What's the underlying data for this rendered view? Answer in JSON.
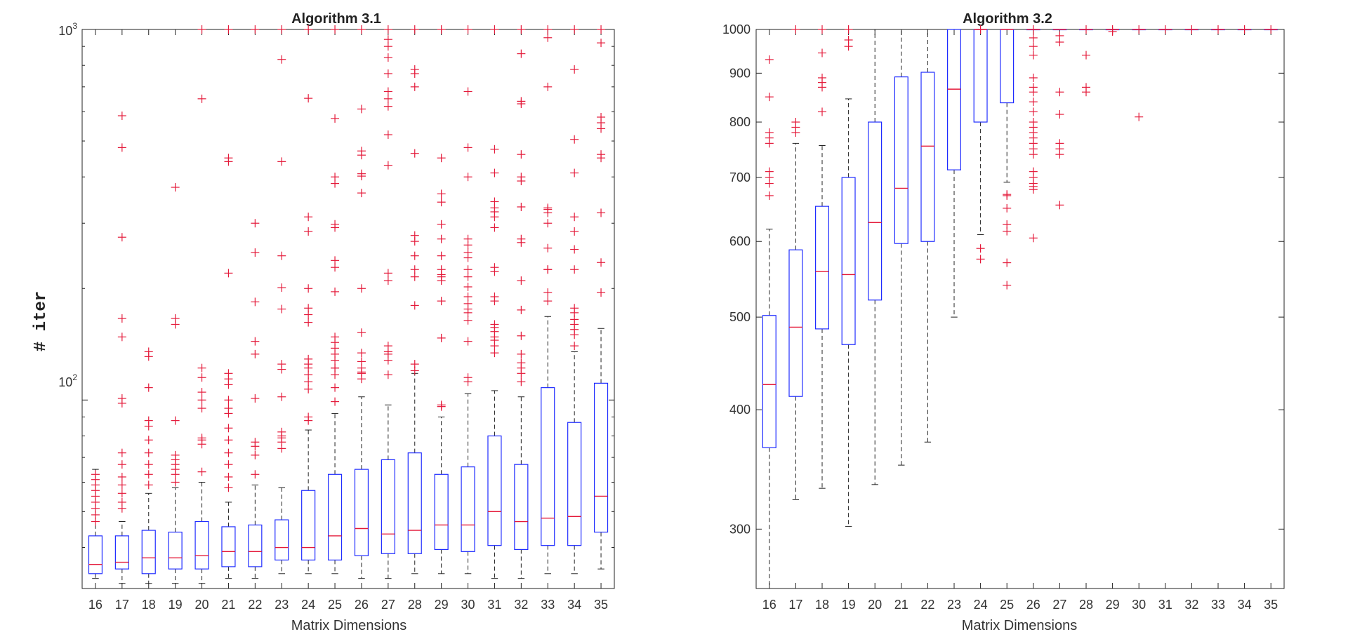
{
  "chart_data": [
    {
      "type": "boxplot",
      "title": "Algorithm 3.1",
      "xlabel": "Matrix Dimensions",
      "ylabel": "# iter",
      "yscale": "log",
      "ylim": [
        31,
        1000
      ],
      "ytick_labels": [
        {
          "base": "10",
          "exp": "2",
          "value": 100
        },
        {
          "base": "10",
          "exp": "3",
          "value": 1000
        }
      ],
      "categories": [
        "16",
        "17",
        "18",
        "19",
        "20",
        "21",
        "22",
        "23",
        "24",
        "25",
        "26",
        "27",
        "28",
        "29",
        "30",
        "31",
        "32",
        "33",
        "34",
        "35"
      ],
      "boxes": [
        {
          "lw": 33,
          "q1": 34,
          "med": 36,
          "q3": 43,
          "uw": 65
        },
        {
          "lw": 32,
          "q1": 35,
          "med": 36.5,
          "q3": 43,
          "uw": 47
        },
        {
          "lw": 32,
          "q1": 34,
          "med": 37.5,
          "q3": 44.5,
          "uw": 56
        },
        {
          "lw": 32,
          "q1": 35,
          "med": 37.5,
          "q3": 44,
          "uw": 58
        },
        {
          "lw": 32,
          "q1": 35,
          "med": 38,
          "q3": 47,
          "uw": 60
        },
        {
          "lw": 33,
          "q1": 35.5,
          "med": 39,
          "q3": 45.5,
          "uw": 53
        },
        {
          "lw": 33,
          "q1": 35.5,
          "med": 39,
          "q3": 46,
          "uw": 59
        },
        {
          "lw": 34,
          "q1": 37,
          "med": 40,
          "q3": 47.5,
          "uw": 58
        },
        {
          "lw": 34,
          "q1": 37,
          "med": 40,
          "q3": 57,
          "uw": 83
        },
        {
          "lw": 34,
          "q1": 37,
          "med": 43,
          "q3": 63,
          "uw": 92
        },
        {
          "lw": 33,
          "q1": 38,
          "med": 45,
          "q3": 65,
          "uw": 102
        },
        {
          "lw": 33,
          "q1": 38.5,
          "med": 43.5,
          "q3": 69,
          "uw": 97
        },
        {
          "lw": 34,
          "q1": 38.5,
          "med": 44.5,
          "q3": 72,
          "uw": 118
        },
        {
          "lw": 34,
          "q1": 39.5,
          "med": 46,
          "q3": 63,
          "uw": 90
        },
        {
          "lw": 34,
          "q1": 39,
          "med": 46,
          "q3": 66,
          "uw": 104
        },
        {
          "lw": 33,
          "q1": 40.5,
          "med": 50,
          "q3": 80,
          "uw": 106
        },
        {
          "lw": 33,
          "q1": 39.5,
          "med": 47,
          "q3": 67,
          "uw": 102
        },
        {
          "lw": 34,
          "q1": 40.5,
          "med": 48,
          "q3": 108,
          "uw": 168
        },
        {
          "lw": 34,
          "q1": 40.5,
          "med": 48.5,
          "q3": 87,
          "uw": 135
        },
        {
          "lw": 35,
          "q1": 44,
          "med": 55,
          "q3": 111,
          "uw": 156
        }
      ],
      "outliers": [
        [
          47,
          49,
          51,
          53,
          55,
          57,
          59,
          61,
          63
        ],
        [
          51,
          53,
          56,
          59,
          62,
          67,
          72,
          98,
          101,
          148,
          166,
          275,
          480,
          585
        ],
        [
          59,
          63,
          67,
          72,
          78,
          85,
          88,
          108,
          131,
          135
        ],
        [
          60,
          63,
          65,
          67,
          69,
          71,
          88,
          160,
          166,
          375
        ],
        [
          64,
          76,
          78,
          79,
          95,
          100,
          105,
          115,
          122,
          650,
          1000
        ],
        [
          58,
          62,
          67,
          72,
          78,
          84,
          92,
          95,
          100,
          110,
          114,
          118,
          220,
          440,
          450,
          1000
        ],
        [
          63,
          71,
          75,
          77,
          101,
          133,
          144,
          184,
          250,
          300,
          1000
        ],
        [
          74,
          77,
          79,
          80,
          82,
          102,
          121,
          125,
          176,
          201,
          245,
          440,
          830,
          1000
        ],
        [
          88,
          90,
          107,
          112,
          117,
          122,
          125,
          129,
          162,
          170,
          177,
          200,
          285,
          312,
          652,
          1000
        ],
        [
          99,
          108,
          117,
          122,
          122,
          128,
          133,
          138,
          143,
          148,
          196,
          228,
          238,
          292,
          298,
          384,
          400,
          575,
          1000
        ],
        [
          114,
          118,
          119,
          122,
          127,
          134,
          152,
          200,
          362,
          402,
          408,
          458,
          470,
          610,
          1000
        ],
        [
          117,
          128,
          133,
          135,
          140,
          210,
          220,
          430,
          520,
          620,
          650,
          680,
          760,
          840,
          900,
          940,
          1000
        ],
        [
          120,
          125,
          180,
          215,
          225,
          245,
          268,
          278,
          463,
          700,
          760,
          780,
          1000
        ],
        [
          96,
          97,
          147,
          185,
          210,
          215,
          218,
          225,
          245,
          272,
          298,
          342,
          360,
          450,
          1000
        ],
        [
          112,
          115,
          144,
          164,
          172,
          176,
          182,
          190,
          202,
          215,
          225,
          242,
          250,
          262,
          272,
          400,
          480,
          680,
          1000
        ],
        [
          134,
          140,
          145,
          148,
          153,
          157,
          160,
          185,
          190,
          222,
          228,
          292,
          312,
          322,
          330,
          343,
          410,
          475,
          1000
        ],
        [
          112,
          118,
          122,
          126,
          133,
          149,
          175,
          210,
          266,
          272,
          332,
          390,
          400,
          460,
          630,
          640,
          860,
          1000
        ],
        [
          185,
          195,
          225,
          225,
          257,
          300,
          320,
          327,
          330,
          700,
          950,
          1000
        ],
        [
          140,
          150,
          155,
          160,
          165,
          172,
          177,
          225,
          255,
          285,
          312,
          410,
          505,
          780,
          1000
        ],
        [
          195,
          235,
          320,
          450,
          460,
          540,
          560,
          580,
          920,
          1000
        ]
      ]
    },
    {
      "type": "boxplot",
      "title": "Algorithm 3.2",
      "xlabel": "Matrix Dimensions",
      "ylabel": "",
      "yscale": "log",
      "ylim": [
        260,
        1000
      ],
      "yticks": [
        300,
        400,
        500,
        600,
        700,
        800,
        900,
        1000
      ],
      "categories": [
        "16",
        "17",
        "18",
        "19",
        "20",
        "21",
        "22",
        "23",
        "24",
        "25",
        "26",
        "27",
        "28",
        "29",
        "30",
        "31",
        "32",
        "33",
        "34",
        "35"
      ],
      "boxes": [
        {
          "lw": 258,
          "q1": 365,
          "med": 425,
          "q3": 502,
          "uw": 618
        },
        {
          "lw": 322,
          "q1": 413,
          "med": 488,
          "q3": 588,
          "uw": 760
        },
        {
          "lw": 331,
          "q1": 486,
          "med": 558,
          "q3": 653,
          "uw": 756
        },
        {
          "lw": 302,
          "q1": 468,
          "med": 554,
          "q3": 700,
          "uw": 846
        },
        {
          "lw": 334,
          "q1": 521,
          "med": 628,
          "q3": 800,
          "uw": 1000
        },
        {
          "lw": 350,
          "q1": 597,
          "med": 682,
          "q3": 892,
          "uw": 1000
        },
        {
          "lw": 370,
          "q1": 600,
          "med": 755,
          "q3": 902,
          "uw": 1000
        },
        {
          "lw": 500,
          "q1": 713,
          "med": 866,
          "q3": 1000,
          "uw": 1000
        },
        {
          "lw": 610,
          "q1": 800,
          "med": 1000,
          "q3": 1000,
          "uw": 1000
        },
        {
          "lw": 692,
          "q1": 838,
          "med": 1000,
          "q3": 1000,
          "uw": 1000
        },
        {
          "lw": 1000,
          "q1": 1000,
          "med": 1000,
          "q3": 1000,
          "uw": 1000
        },
        {
          "lw": 1000,
          "q1": 1000,
          "med": 1000,
          "q3": 1000,
          "uw": 1000
        },
        {
          "lw": 1000,
          "q1": 1000,
          "med": 1000,
          "q3": 1000,
          "uw": 1000
        },
        {
          "lw": 1000,
          "q1": 1000,
          "med": 1000,
          "q3": 1000,
          "uw": 1000
        },
        {
          "lw": 1000,
          "q1": 1000,
          "med": 1000,
          "q3": 1000,
          "uw": 1000
        },
        {
          "lw": 1000,
          "q1": 1000,
          "med": 1000,
          "q3": 1000,
          "uw": 1000
        },
        {
          "lw": 1000,
          "q1": 1000,
          "med": 1000,
          "q3": 1000,
          "uw": 1000
        },
        {
          "lw": 1000,
          "q1": 1000,
          "med": 1000,
          "q3": 1000,
          "uw": 1000
        },
        {
          "lw": 1000,
          "q1": 1000,
          "med": 1000,
          "q3": 1000,
          "uw": 1000
        },
        {
          "lw": 1000,
          "q1": 1000,
          "med": 1000,
          "q3": 1000,
          "uw": 1000
        }
      ],
      "outliers": [
        [
          670,
          690,
          700,
          710,
          760,
          770,
          780,
          850,
          930
        ],
        [
          780,
          790,
          800,
          1000
        ],
        [
          820,
          870,
          880,
          890,
          945,
          1000
        ],
        [
          960,
          975,
          1000
        ],
        [],
        [],
        [],
        [],
        [
          575,
          590,
          1000
        ],
        [
          540,
          570,
          615,
          625,
          650,
          670,
          672
        ],
        [
          605,
          680,
          685,
          690,
          700,
          710,
          740,
          750,
          760,
          770,
          780,
          790,
          800,
          820,
          840,
          860,
          870,
          890,
          940,
          960,
          980,
          1000
        ],
        [
          655,
          740,
          750,
          760,
          815,
          860,
          970,
          985
        ],
        [
          860,
          870,
          940,
          1000
        ],
        [
          995,
          1000
        ],
        [
          810,
          1000
        ],
        [
          1000
        ],
        [
          1000
        ],
        [
          1000
        ],
        [
          1000
        ],
        [
          1000
        ]
      ]
    }
  ]
}
